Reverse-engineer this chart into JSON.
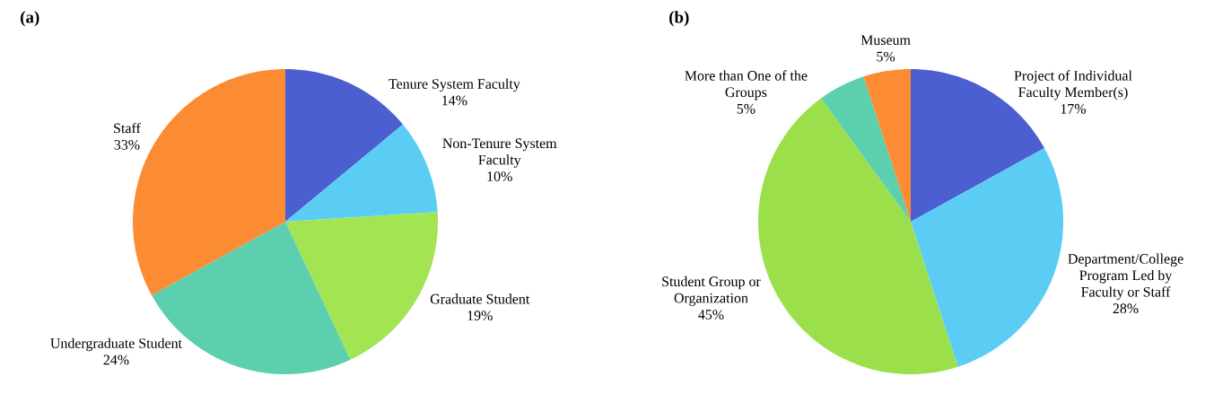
{
  "chart_data": [
    {
      "type": "pie",
      "title": "(a)",
      "categories": [
        "Tenure System Faculty",
        "Non-Tenure System Faculty",
        "Graduate Student",
        "Undergraduate Student",
        "Staff"
      ],
      "values": [
        14,
        10,
        19,
        24,
        33
      ],
      "colors": [
        "#4b5fd0",
        "#5bcdf5",
        "#a3e453",
        "#5ccfae",
        "#fb8c33"
      ],
      "value_labels": [
        "14%",
        "10%",
        "19%",
        "24%",
        "33%"
      ]
    },
    {
      "type": "pie",
      "title": "(b)",
      "categories": [
        "Project of Individual Faculty Member(s)",
        "Department/College Program Led by Faculty or Staff",
        "Student Group or Organization",
        "More than One of the Groups",
        "Museum"
      ],
      "values": [
        17,
        28,
        45,
        5,
        5
      ],
      "colors": [
        "#4b5fd0",
        "#5bcdf5",
        "#9be04a",
        "#5ccfae",
        "#fb8c33"
      ],
      "value_labels": [
        "17%",
        "28%",
        "45%",
        "5%",
        "5%"
      ]
    }
  ]
}
